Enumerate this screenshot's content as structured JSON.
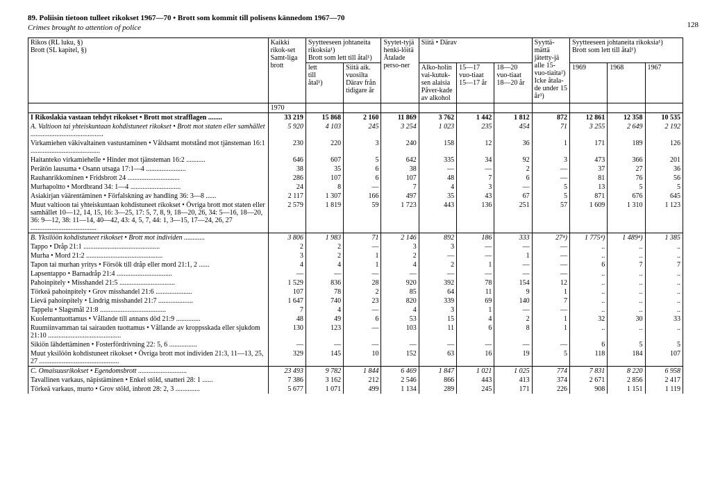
{
  "page_number": "128",
  "heading_number": "89.",
  "heading_text": "Poliisin tietoon tulleet rikokset 1967—70  •  Brott som kommit till polisens kännedom 1967—70",
  "subtitle": "Crimes brought to attention of police",
  "header": {
    "rikos_label": "Rikos (RL luku, §)\nBrott (SL kapitel, §)",
    "kaikki": "Kaikki rikok-set\nSamt-liga brott",
    "syytteeseen": "Syytteeseen johtaneita rikoksia¹)\nBrott som lett till åtal¹)",
    "siitaaik": "Siitä aik. vuosilta\nDärav från tidigare år",
    "syytet": "Syytet-tyjä henki-löitä\nÅtalade perso-ner",
    "siita_darav": "Siitä • Därav",
    "alko": "Alko-holin vai-kutuk-sen alaisia\nPåver-kade av alkohol",
    "a1517": "15—17 vuo-tiaat\n15—17 år",
    "a1820": "18—20 vuo-tiaat\n18—20 år",
    "syytta": "Syyttä-mättä jätetty-jä alle 15-vuo-tiaita²)\nIcke åtala-de under 15 år³)",
    "syyt_right": "Syytteeseen johtaneita rikoksia¹)\nBrott som lett till åtal¹)",
    "y1969": "1969",
    "y1968": "1968",
    "y1967": "1967",
    "year_row": "1970"
  },
  "rows": [
    {
      "label": "I Rikoslakia vastaan tehdyt rikokset • Brott mot strafflagen  ........",
      "bold": true,
      "vals": [
        "33 219",
        "15 868",
        "2 160",
        "11 869",
        "3 762",
        "1 442",
        "1 812",
        "872",
        "12 861",
        "12 358",
        "10 535"
      ]
    },
    {
      "label": "A. Valtioon tai yhteiskuntaan kohdistuneet rikokset • Brott mot staten eller samhället ..........................................",
      "italic": true,
      "vals": [
        "5 920",
        "4 103",
        "245",
        "3 254",
        "1 023",
        "235",
        "454",
        "71",
        "3 255",
        "2 649",
        "2 192"
      ]
    },
    {
      "label": "Virkamiehen väkivaltainen vastustaminen • Våldsamt motstånd mot tjänsteman 16:1 ........................................",
      "vals": [
        "230",
        "220",
        "3",
        "240",
        "158",
        "12",
        "36",
        "1",
        "171",
        "189",
        "126"
      ]
    },
    {
      "label": "Haitanteko virkamiehelle • Hinder mot tjänsteman 16:2  ...........",
      "vals": [
        "646",
        "607",
        "5",
        "642",
        "335",
        "34",
        "92",
        "3",
        "473",
        "366",
        "201"
      ]
    },
    {
      "label": "Perätön lausuma • Osann utsaga 17:1—4  .......................",
      "vals": [
        "38",
        "35",
        "6",
        "38",
        "—",
        "—",
        "2",
        "—",
        "37",
        "27",
        "36"
      ]
    },
    {
      "label": "Rauhanrikkominen • Fridsbrott 24  ..............................",
      "vals": [
        "286",
        "107",
        "6",
        "107",
        "48",
        "7",
        "6",
        "—",
        "81",
        "76",
        "56"
      ]
    },
    {
      "label": "Murhapoltto • Mordbrand 34: 1—4 .............................",
      "vals": [
        "24",
        "8",
        "—",
        "7",
        "4",
        "3",
        "—",
        "5",
        "13",
        "5",
        "5"
      ]
    },
    {
      "label": "Asiakirjan väärentäminen • Förfalskning av handling 36: 3—8 ......",
      "vals": [
        "2 117",
        "1 307",
        "166",
        "497",
        "35",
        "43",
        "67",
        "5",
        "871",
        "676",
        "645"
      ]
    },
    {
      "label": "Muut valtioon tai yhteiskuntaan kohdistuneet rikokset • Övriga brott mot staten eller samhället 10—12, 14, 15, 16: 3—25, 17: 5, 7, 8, 9, 18—20, 26, 34: 5—16, 18—20, 36: 9—12, 38: 11—14, 40—42, 43: 4, 5, 7, 44: 1, 3—15, 17—24, 26, 27  ......................................",
      "vals": [
        "2 579",
        "1 819",
        "59",
        "1 723",
        "443",
        "136",
        "251",
        "57",
        "1 609",
        "1 310",
        "1 123"
      ]
    },
    {
      "label": "B. Yksilöön kohdistuneet rikokset • Brott mot individen  ............",
      "italic": true,
      "section": true,
      "vals": [
        "3 806",
        "1 983",
        "71",
        "2 146",
        "892",
        "186",
        "333",
        "27⁴)",
        "1 775⁴)",
        "1 489⁴)",
        "1 385"
      ]
    },
    {
      "label": "Tappo • Dråp 21:1  ............................................",
      "vals": [
        "2",
        "2",
        "—",
        "3",
        "3",
        "—",
        "—",
        "—",
        "..",
        "..",
        ".."
      ]
    },
    {
      "label": "Murha • Mord 21:2 ............................................",
      "vals": [
        "3",
        "2",
        "1",
        "2",
        "—",
        "—",
        "1",
        "—",
        "..",
        "..",
        ".."
      ]
    },
    {
      "label": "Tapon tai murhan yritys • Försök till dråp eller mord 21:1, 2  ......",
      "vals": [
        "4",
        "4",
        "1",
        "4",
        "2",
        "1",
        "—",
        "—",
        "6",
        "7",
        "7"
      ]
    },
    {
      "label": "Lapsentappo • Barnadråp 21:4  ................................",
      "vals": [
        "—",
        "—",
        "—",
        "—",
        "—",
        "—",
        "—",
        "—",
        "..",
        "..",
        ".."
      ]
    },
    {
      "label": "Pahoinpitely • Misshandel 21:5  ................................",
      "vals": [
        "1 529",
        "836",
        "28",
        "920",
        "392",
        "78",
        "154",
        "12",
        "..",
        "..",
        ".."
      ]
    },
    {
      "label": "Törkeä pahoinpitely • Grov misshandel 21:6 .....................",
      "vals": [
        "107",
        "78",
        "2",
        "85",
        "64",
        "11",
        "9",
        "1",
        "..",
        "..",
        ".."
      ]
    },
    {
      "label": "Lievä pahoinpitely • Lindrig misshandel 21:7  ....................",
      "vals": [
        "1 647",
        "740",
        "23",
        "820",
        "339",
        "69",
        "140",
        "7",
        "..",
        "..",
        ".."
      ]
    },
    {
      "label": "Tappelu • Slagsmål 21:8  ......................................",
      "vals": [
        "7",
        "4",
        "—",
        "4",
        "3",
        "1",
        "—",
        "—",
        "..",
        "..",
        ".."
      ]
    },
    {
      "label": "Kuolemantuottamus • Vållande till annans död 21:9 ..............",
      "vals": [
        "48",
        "49",
        "6",
        "53",
        "15",
        "4",
        "2",
        "1",
        "32",
        "30",
        "33"
      ]
    },
    {
      "label": "Ruumiinvamman tai sairauden tuottamus • Vållande av kroppsskada eller sjukdom 21:10  ..........................................",
      "vals": [
        "130",
        "123",
        "—",
        "103",
        "11",
        "6",
        "8",
        "1",
        "..",
        "..",
        ".."
      ]
    },
    {
      "label": "Sikiön lähdettäminen • Fosterfördrivning 22: 5, 6  ................",
      "vals": [
        "—",
        "—",
        "—",
        "—",
        "—",
        "—",
        "—",
        "—",
        "6",
        "5",
        "5"
      ]
    },
    {
      "label": "Muut yksilöön kohdistuneet rikokset • Övriga brott mot individen 21:3, 11—13, 25, 27  ..............................................",
      "vals": [
        "329",
        "145",
        "10",
        "152",
        "63",
        "16",
        "19",
        "5",
        "118",
        "184",
        "107"
      ]
    },
    {
      "label": "C. Omaisuusrikokset • Egendomsbrott  ............................",
      "italic": true,
      "section": true,
      "vals": [
        "23 493",
        "9 782",
        "1 844",
        "6 469",
        "1 847",
        "1 021",
        "1 025",
        "774",
        "7 831",
        "8 220",
        "6 958"
      ]
    },
    {
      "label": "Tavallinen varkaus, näpistäminen • Enkel stöld, snatteri 28: 1 ......",
      "vals": [
        "7 386",
        "3 162",
        "212",
        "2 546",
        "866",
        "443",
        "413",
        "374",
        "2 671",
        "2 856",
        "2 417"
      ]
    },
    {
      "label": "Törkeä varkaus, murto • Grov stöld, inbrott 28: 2, 3  ..............",
      "vals": [
        "5 677",
        "1 071",
        "499",
        "1 134",
        "289",
        "245",
        "171",
        "226",
        "908",
        "1 151",
        "1 119"
      ]
    }
  ]
}
